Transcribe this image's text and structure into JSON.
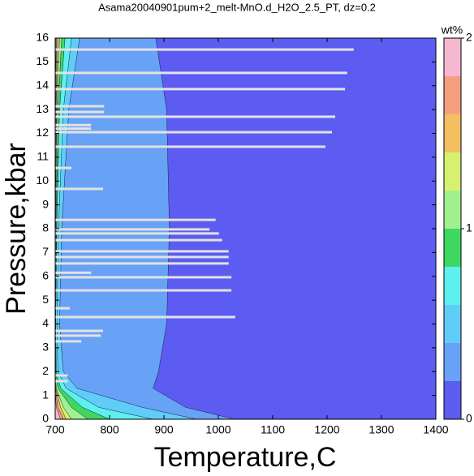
{
  "chart_data": {
    "type": "contour",
    "title": "Asama20040901pum+2_melt-MnO.d_H2O_2.5_PT, dz=0.2",
    "xlabel": "Temperature,C",
    "ylabel": "Pressure,kbar",
    "xlim": [
      700,
      1400
    ],
    "xticks": [
      700,
      800,
      900,
      1000,
      1100,
      1200,
      1300,
      1400
    ],
    "ylim": [
      0,
      16
    ],
    "yticks": [
      0,
      1,
      2,
      3,
      4,
      5,
      6,
      7,
      8,
      9,
      10,
      11,
      12,
      13,
      14,
      15,
      16
    ],
    "colorbar_label": "wt%",
    "clim": [
      0,
      2
    ],
    "cticks": [
      0,
      1,
      2
    ],
    "levels": [
      0,
      0.2,
      0.4,
      0.6,
      0.8,
      1.0,
      1.2,
      1.4,
      1.6,
      1.8,
      2.0
    ],
    "colors": [
      "#5c5cf2",
      "#68a2f6",
      "#5fcdf8",
      "#5ef0ee",
      "#3ed860",
      "#a0f090",
      "#d8f070",
      "#f2c060",
      "#f4a080",
      "#f6b8d0"
    ],
    "pressure": [
      0,
      0.5,
      1.3,
      2,
      4,
      8,
      13,
      16
    ],
    "contours": [
      {
        "level": 0.2,
        "temperature": [
          1030,
          940,
          880,
          890,
          905,
          910,
          905,
          885
        ]
      },
      {
        "level": 0.4,
        "temperature": [
          960,
          860,
          740,
          715,
          708,
          712,
          725,
          745
        ]
      },
      {
        "level": 0.6,
        "temperature": [
          880,
          780,
          720,
          705,
          703,
          706,
          715,
          730
        ]
      },
      {
        "level": 0.8,
        "temperature": [
          800,
          750,
          710,
          702,
          701,
          703,
          708,
          718
        ]
      },
      {
        "level": 1.0,
        "temperature": [
          760,
          730,
          705,
          701,
          700.5,
          702,
          705,
          712
        ]
      },
      {
        "level": 1.2,
        "temperature": [
          730,
          715,
          702,
          700,
          700,
          701,
          703,
          708
        ]
      },
      {
        "level": 1.4,
        "temperature": [
          720,
          710,
          701,
          700,
          700,
          700.5,
          702,
          705
        ]
      },
      {
        "level": 1.6,
        "temperature": [
          715,
          705,
          700.5,
          700,
          700,
          700,
          701,
          703
        ]
      },
      {
        "level": 1.8,
        "temperature": [
          710,
          702,
          700,
          700,
          700,
          700,
          700.5,
          701.5
        ]
      }
    ],
    "gap_color": "#e2e2e2",
    "gaps": {
      "pressure": [
        15.52,
        14.54,
        13.86,
        13.14,
        12.9,
        12.7,
        12.35,
        12.2,
        12.05,
        11.44,
        10.55,
        9.67,
        8.37,
        7.97,
        7.8,
        7.52,
        7.05,
        6.81,
        6.54,
        6.15,
        5.96,
        5.41,
        4.66,
        4.29,
        3.71,
        3.51,
        3.27,
        1.84,
        1.6
      ],
      "tmax": [
        1249,
        1237,
        1233,
        790,
        790,
        1215,
        766,
        766,
        1209,
        1197,
        730,
        788,
        995,
        984,
        1001,
        1007,
        1019,
        1019,
        1019,
        766,
        1024,
        1024,
        727,
        1031,
        788,
        784,
        748,
        723,
        723
      ]
    }
  }
}
